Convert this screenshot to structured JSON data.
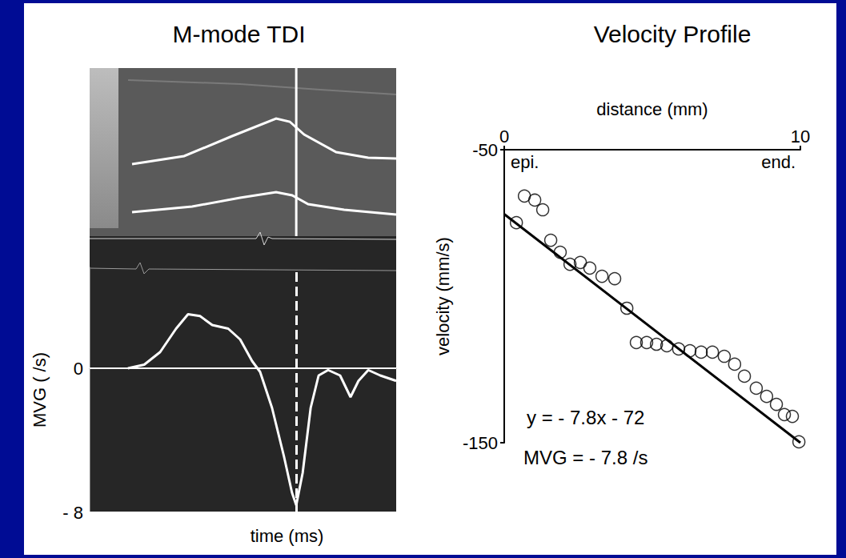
{
  "chart_data": [
    {
      "type": "line",
      "title": "M-mode TDI",
      "x_label": "time (ms)",
      "y_label": "MVG ( /s)",
      "x": [
        12.5,
        17.8,
        23,
        28.2,
        32.1,
        36,
        40,
        45.2,
        49.1,
        53,
        55.6,
        59.5,
        63.4,
        66,
        67.4,
        69.5,
        72.1,
        74.7,
        77.8,
        81.7,
        85.1,
        87.7,
        90.9,
        94.8,
        100
      ],
      "values": [
        0,
        0.2,
        0.9,
        2.2,
        3.0,
        2.9,
        2.4,
        2.2,
        1.6,
        0.4,
        -0.2,
        -2.2,
        -4.9,
        -6.9,
        -7.6,
        -5.8,
        -2.2,
        -0.4,
        -0.1,
        -0.4,
        -1.6,
        -0.7,
        -0.1,
        -0.4,
        -0.7
      ],
      "color": "#ffffff",
      "line_style": "solid",
      "reference_x": 67.4,
      "xlim": [
        0,
        100
      ],
      "ylim": [
        -8,
        5.6
      ],
      "yticks": [
        {
          "value": -8,
          "label": "- 8"
        },
        0
      ],
      "grid": true,
      "tick_labels": "y"
    },
    {
      "type": "scatter",
      "title": "Velocity Profile",
      "x_label": "distance (mm)",
      "y_label": "velocity (mm/s)",
      "x_end_labels": [
        "epi.",
        "end."
      ],
      "x": [
        0.41,
        0.68,
        1.03,
        1.3,
        1.57,
        1.89,
        2.22,
        2.57,
        2.89,
        3.3,
        3.73,
        4.14,
        4.46,
        4.81,
        5.14,
        5.49,
        5.89,
        6.27,
        6.65,
        7.03,
        7.43,
        7.78,
        8.11,
        8.51,
        8.86,
        9.19,
        9.46,
        9.73,
        9.95
      ],
      "values": [
        -74.9,
        -65.8,
        -67.2,
        -70.5,
        -80.9,
        -85,
        -89.1,
        -88.5,
        -90.4,
        -93.2,
        -94,
        -104.1,
        -115.8,
        -115.8,
        -116.4,
        -116.9,
        -118,
        -118.6,
        -119.1,
        -119.1,
        -120.5,
        -123.2,
        -127.3,
        -131.4,
        -134.2,
        -136.9,
        -140.4,
        -141,
        -149.7
      ],
      "marker": "circle",
      "color": "#000000",
      "fit": {
        "slope": -7.8,
        "intercept": -72,
        "line_style": "solid"
      },
      "annotations": [
        "y = - 7.8x - 72",
        "MVG = - 7.8 /s"
      ],
      "xlim": [
        0,
        10
      ],
      "xticks": [
        0,
        10
      ],
      "ylim": [
        -150,
        -50
      ],
      "yticks": [
        -50,
        -150
      ],
      "grid": false
    }
  ]
}
